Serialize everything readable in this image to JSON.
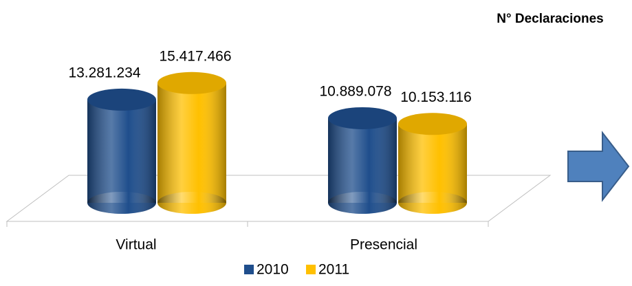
{
  "chart_data": {
    "type": "bar",
    "title": "N° Declaraciones",
    "categories": [
      "Virtual",
      "Presencial"
    ],
    "series": [
      {
        "name": "2010",
        "color": "#1f4e8c",
        "values": [
          13281234,
          10889078
        ],
        "value_labels": [
          "13.281.234",
          "10.889.078"
        ]
      },
      {
        "name": "2011",
        "color": "#ffc000",
        "values": [
          15417466,
          10153116
        ],
        "value_labels": [
          "15.417.466",
          "10.153.116"
        ]
      }
    ],
    "legend": "bottom"
  }
}
